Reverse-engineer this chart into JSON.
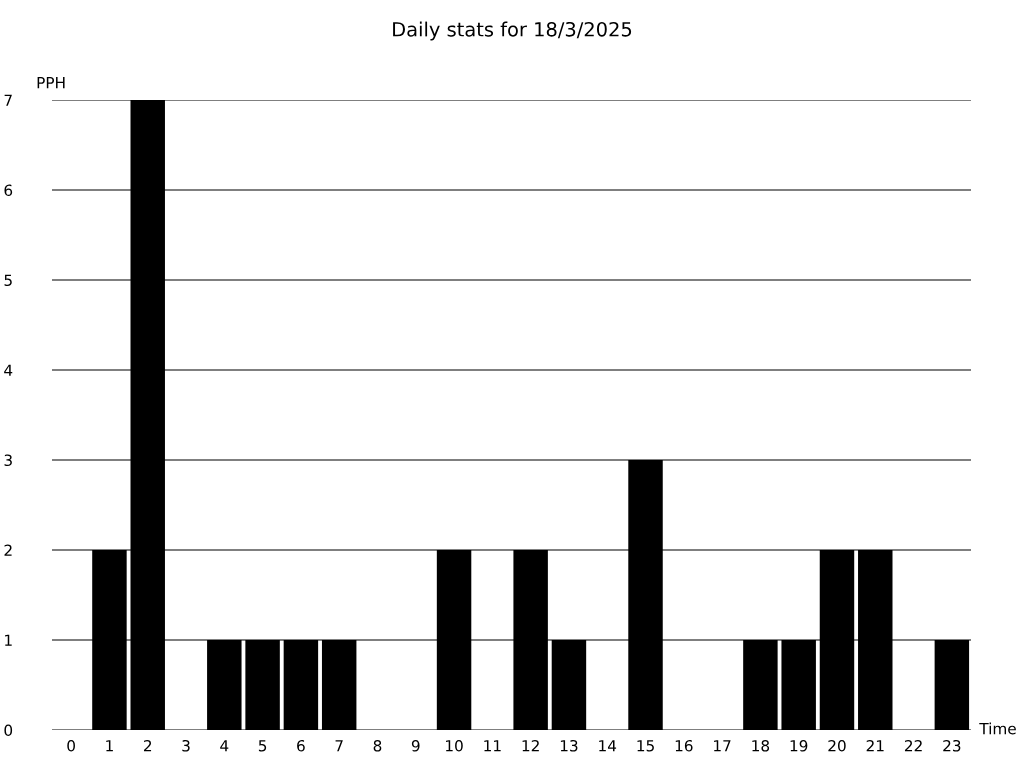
{
  "chart_data": {
    "type": "bar",
    "title": "Daily stats for 18/3/2025",
    "xlabel": "Time",
    "ylabel": "PPH",
    "categories": [
      "0",
      "1",
      "2",
      "3",
      "4",
      "5",
      "6",
      "7",
      "8",
      "9",
      "10",
      "11",
      "12",
      "13",
      "14",
      "15",
      "16",
      "17",
      "18",
      "19",
      "20",
      "21",
      "22",
      "23"
    ],
    "values": [
      0,
      2,
      7,
      0,
      1,
      1,
      1,
      1,
      0,
      0,
      2,
      0,
      2,
      1,
      0,
      3,
      0,
      0,
      1,
      1,
      2,
      2,
      0,
      1
    ],
    "color": "#000000",
    "ylim": [
      0,
      7
    ],
    "yticks": [
      0,
      1,
      2,
      3,
      4,
      5,
      6,
      7
    ],
    "grid": "y"
  }
}
